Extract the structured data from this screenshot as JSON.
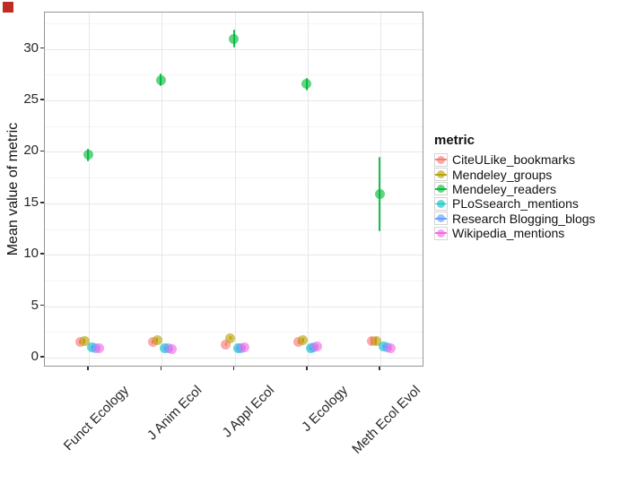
{
  "decorations": {
    "corner_marker_color": "#BF2C23"
  },
  "chart_data": {
    "type": "pointrange",
    "title": "",
    "xlabel": "",
    "ylabel": "Mean value of metric",
    "ylim": [
      -1.1,
      33.5
    ],
    "yticks": [
      0,
      5,
      10,
      15,
      20,
      25,
      30
    ],
    "grid": "major+minor horizontal, major vertical at categories",
    "legend_position": "right",
    "legend_title": "metric",
    "categories": [
      "Funct Ecology",
      "J Anim Ecol",
      "J Appl Ecol",
      "J Ecology",
      "Meth Ecol Evol"
    ],
    "dodge_offsets": [
      -10,
      -5,
      -1,
      3.5,
      7,
      11
    ],
    "series": [
      {
        "name": "CiteULike_bookmarks",
        "color": "#F8766D",
        "means": [
          1.5,
          1.5,
          1.3,
          1.5,
          1.6
        ],
        "lo": [
          1.3,
          1.3,
          1.1,
          1.3,
          1.2
        ],
        "hi": [
          1.7,
          1.7,
          1.5,
          1.7,
          2.0
        ]
      },
      {
        "name": "Mendeley_groups",
        "color": "#B79F00",
        "means": [
          1.6,
          1.7,
          1.9,
          1.7,
          1.6
        ],
        "lo": [
          1.4,
          1.5,
          1.7,
          1.5,
          1.2
        ],
        "hi": [
          1.8,
          1.9,
          2.1,
          1.9,
          2.0
        ]
      },
      {
        "name": "Mendeley_readers",
        "color": "#00BA38",
        "means": [
          19.7,
          27.0,
          31.0,
          26.6,
          15.9
        ],
        "lo": [
          19.1,
          26.4,
          30.1,
          26.0,
          12.3
        ],
        "hi": [
          20.3,
          27.6,
          31.9,
          27.2,
          19.5
        ]
      },
      {
        "name": "PLoSsearch_mentions",
        "color": "#00BFC4",
        "means": [
          1.0,
          0.9,
          0.9,
          0.9,
          1.1
        ],
        "lo": [
          0.9,
          0.8,
          0.8,
          0.8,
          1.0
        ],
        "hi": [
          1.1,
          1.0,
          1.0,
          1.0,
          1.2
        ]
      },
      {
        "name": "Research Blogging_blogs",
        "color": "#619CFF",
        "means": [
          0.9,
          0.9,
          0.9,
          1.0,
          1.0
        ],
        "lo": [
          0.8,
          0.8,
          0.8,
          0.9,
          0.9
        ],
        "hi": [
          1.0,
          1.0,
          1.0,
          1.1,
          1.1
        ]
      },
      {
        "name": "Wikipedia_mentions",
        "color": "#F564E3",
        "means": [
          0.9,
          0.8,
          1.0,
          1.1,
          0.9
        ],
        "lo": [
          0.8,
          0.7,
          0.9,
          1.0,
          0.8
        ],
        "hi": [
          1.0,
          0.9,
          1.1,
          1.2,
          1.0
        ]
      }
    ]
  }
}
